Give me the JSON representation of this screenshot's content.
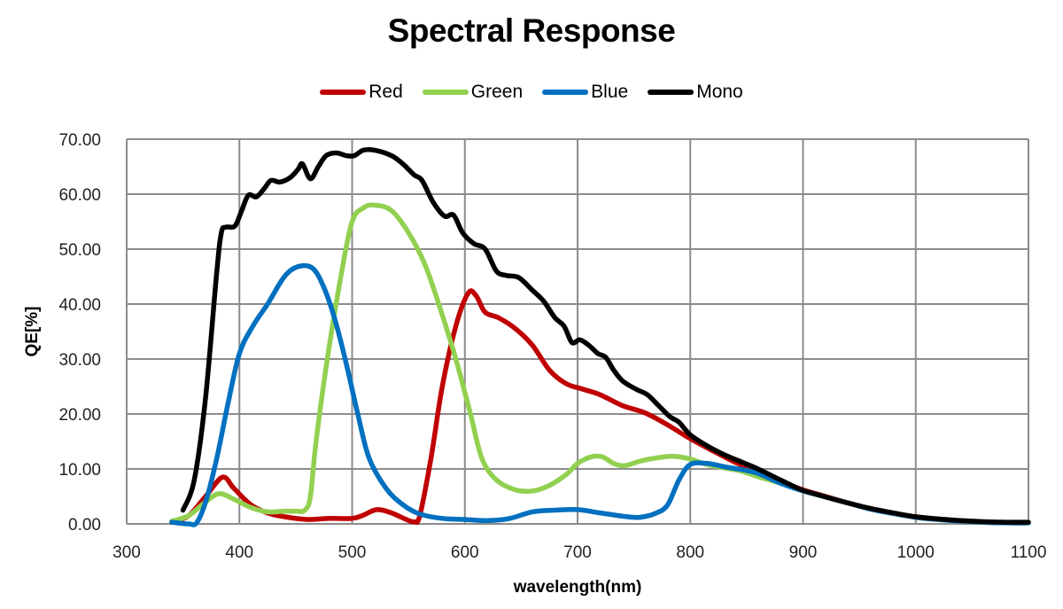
{
  "chart_data": {
    "type": "line",
    "title": "Spectral Response",
    "xlabel": "wavelength(nm)",
    "ylabel": "QE[%]",
    "xlim": [
      300,
      1100
    ],
    "ylim": [
      0,
      70
    ],
    "x_ticks": [
      300,
      400,
      500,
      600,
      700,
      800,
      900,
      1000,
      1100
    ],
    "x_tick_labels": [
      "300",
      "400",
      "500",
      "600",
      "700",
      "800",
      "900",
      "1000",
      "1100"
    ],
    "y_ticks": [
      0,
      10,
      20,
      30,
      40,
      50,
      60,
      70
    ],
    "y_tick_labels": [
      "0.00",
      "10.00",
      "20.00",
      "30.00",
      "40.00",
      "50.00",
      "60.00",
      "70.00"
    ],
    "grid": true,
    "legend_position": "top-center",
    "series": [
      {
        "name": "Red",
        "color": "#c00000",
        "points": [
          [
            340,
            0.3
          ],
          [
            355,
            1.5
          ],
          [
            370,
            5
          ],
          [
            385,
            8.5
          ],
          [
            395,
            6.5
          ],
          [
            410,
            3.5
          ],
          [
            425,
            2.0
          ],
          [
            440,
            1.3
          ],
          [
            460,
            0.8
          ],
          [
            480,
            1.0
          ],
          [
            500,
            1.0
          ],
          [
            510,
            1.6
          ],
          [
            522,
            2.6
          ],
          [
            535,
            2.0
          ],
          [
            548,
            0.8
          ],
          [
            555,
            0.4
          ],
          [
            560,
            1.5
          ],
          [
            570,
            12
          ],
          [
            580,
            25
          ],
          [
            592,
            36
          ],
          [
            603,
            42
          ],
          [
            610,
            41.5
          ],
          [
            618,
            38.5
          ],
          [
            630,
            37.5
          ],
          [
            645,
            35.5
          ],
          [
            660,
            32.5
          ],
          [
            675,
            28
          ],
          [
            690,
            25.5
          ],
          [
            705,
            24.5
          ],
          [
            720,
            23.5
          ],
          [
            740,
            21.5
          ],
          [
            760,
            20.2
          ],
          [
            780,
            18
          ],
          [
            800,
            15.5
          ],
          [
            820,
            13.3
          ],
          [
            840,
            11.2
          ],
          [
            860,
            9.6
          ],
          [
            880,
            7.8
          ],
          [
            900,
            6.2
          ],
          [
            920,
            5.0
          ],
          [
            940,
            3.8
          ],
          [
            960,
            2.7
          ],
          [
            980,
            1.9
          ],
          [
            1000,
            1.2
          ],
          [
            1020,
            0.8
          ],
          [
            1040,
            0.5
          ],
          [
            1060,
            0.3
          ],
          [
            1080,
            0.2
          ],
          [
            1100,
            0.2
          ]
        ]
      },
      {
        "name": "Green",
        "color": "#92d050",
        "points": [
          [
            340,
            0.5
          ],
          [
            355,
            1.5
          ],
          [
            370,
            4
          ],
          [
            382,
            5.5
          ],
          [
            395,
            4.5
          ],
          [
            410,
            3
          ],
          [
            425,
            2.2
          ],
          [
            440,
            2.3
          ],
          [
            450,
            2.3
          ],
          [
            458,
            2.5
          ],
          [
            463,
            5
          ],
          [
            468,
            15
          ],
          [
            478,
            30
          ],
          [
            490,
            45
          ],
          [
            500,
            55
          ],
          [
            510,
            57.5
          ],
          [
            520,
            58
          ],
          [
            535,
            57
          ],
          [
            550,
            53
          ],
          [
            565,
            47
          ],
          [
            580,
            38
          ],
          [
            592,
            30
          ],
          [
            605,
            20
          ],
          [
            615,
            12
          ],
          [
            628,
            8
          ],
          [
            645,
            6.2
          ],
          [
            660,
            6
          ],
          [
            675,
            7
          ],
          [
            690,
            9
          ],
          [
            700,
            11
          ],
          [
            712,
            12.2
          ],
          [
            722,
            12.2
          ],
          [
            732,
            11
          ],
          [
            742,
            10.6
          ],
          [
            755,
            11.4
          ],
          [
            770,
            12
          ],
          [
            785,
            12.3
          ],
          [
            800,
            11.8
          ],
          [
            815,
            10.8
          ],
          [
            830,
            10.2
          ],
          [
            845,
            9.6
          ],
          [
            860,
            8.6
          ],
          [
            880,
            7.4
          ],
          [
            900,
            6.0
          ],
          [
            920,
            4.9
          ],
          [
            940,
            3.8
          ],
          [
            960,
            2.7
          ],
          [
            980,
            1.9
          ],
          [
            1000,
            1.2
          ],
          [
            1020,
            0.8
          ],
          [
            1040,
            0.5
          ],
          [
            1060,
            0.3
          ],
          [
            1080,
            0.2
          ],
          [
            1100,
            0.2
          ]
        ]
      },
      {
        "name": "Blue",
        "color": "#0070c0",
        "points": [
          [
            340,
            0.3
          ],
          [
            355,
            0
          ],
          [
            362,
            0.2
          ],
          [
            370,
            4
          ],
          [
            380,
            12
          ],
          [
            390,
            22
          ],
          [
            400,
            31
          ],
          [
            412,
            36
          ],
          [
            425,
            40
          ],
          [
            440,
            45
          ],
          [
            452,
            46.8
          ],
          [
            465,
            46.5
          ],
          [
            475,
            43
          ],
          [
            485,
            37
          ],
          [
            495,
            29
          ],
          [
            505,
            20
          ],
          [
            515,
            12
          ],
          [
            530,
            6.5
          ],
          [
            545,
            3.5
          ],
          [
            560,
            1.8
          ],
          [
            580,
            1.0
          ],
          [
            600,
            0.8
          ],
          [
            620,
            0.6
          ],
          [
            640,
            1.0
          ],
          [
            660,
            2.2
          ],
          [
            680,
            2.5
          ],
          [
            700,
            2.6
          ],
          [
            720,
            2.0
          ],
          [
            740,
            1.4
          ],
          [
            755,
            1.2
          ],
          [
            770,
            2.0
          ],
          [
            780,
            3.5
          ],
          [
            790,
            8
          ],
          [
            800,
            10.8
          ],
          [
            815,
            11
          ],
          [
            830,
            10.4
          ],
          [
            845,
            9.9
          ],
          [
            860,
            9.2
          ],
          [
            880,
            7.4
          ],
          [
            900,
            6.0
          ],
          [
            920,
            4.9
          ],
          [
            940,
            3.8
          ],
          [
            960,
            2.7
          ],
          [
            980,
            1.9
          ],
          [
            1000,
            1.2
          ],
          [
            1020,
            0.8
          ],
          [
            1040,
            0.5
          ],
          [
            1060,
            0.3
          ],
          [
            1080,
            0.2
          ],
          [
            1100,
            0.2
          ]
        ]
      },
      {
        "name": "Mono",
        "color": "#000000",
        "points": [
          [
            350,
            2.5
          ],
          [
            360,
            8
          ],
          [
            370,
            23
          ],
          [
            380,
            46
          ],
          [
            384,
            53
          ],
          [
            388,
            54
          ],
          [
            396,
            54.2
          ],
          [
            402,
            57
          ],
          [
            408,
            59.8
          ],
          [
            415,
            59.5
          ],
          [
            422,
            61
          ],
          [
            428,
            62.5
          ],
          [
            436,
            62.2
          ],
          [
            445,
            63
          ],
          [
            452,
            64.5
          ],
          [
            456,
            65.5
          ],
          [
            463,
            62.8
          ],
          [
            470,
            65
          ],
          [
            477,
            67
          ],
          [
            486,
            67.5
          ],
          [
            495,
            67
          ],
          [
            502,
            67
          ],
          [
            510,
            68
          ],
          [
            520,
            68
          ],
          [
            535,
            67
          ],
          [
            545,
            65.5
          ],
          [
            555,
            63.5
          ],
          [
            562,
            62.5
          ],
          [
            572,
            58.5
          ],
          [
            582,
            56
          ],
          [
            590,
            56.2
          ],
          [
            598,
            53
          ],
          [
            608,
            51
          ],
          [
            618,
            50
          ],
          [
            628,
            46
          ],
          [
            637,
            45.2
          ],
          [
            648,
            44.8
          ],
          [
            660,
            42.5
          ],
          [
            670,
            40.5
          ],
          [
            680,
            37.5
          ],
          [
            688,
            36
          ],
          [
            695,
            33
          ],
          [
            702,
            33.5
          ],
          [
            710,
            32.5
          ],
          [
            718,
            31
          ],
          [
            725,
            30.3
          ],
          [
            732,
            28
          ],
          [
            740,
            26
          ],
          [
            752,
            24.5
          ],
          [
            762,
            23.5
          ],
          [
            772,
            21.5
          ],
          [
            782,
            19.5
          ],
          [
            790,
            18.5
          ],
          [
            800,
            16.2
          ],
          [
            815,
            14.2
          ],
          [
            830,
            12.6
          ],
          [
            845,
            11.3
          ],
          [
            860,
            10
          ],
          [
            875,
            8.5
          ],
          [
            890,
            7.0
          ],
          [
            900,
            6.1
          ],
          [
            920,
            4.9
          ],
          [
            940,
            3.8
          ],
          [
            960,
            2.8
          ],
          [
            980,
            2.0
          ],
          [
            1000,
            1.3
          ],
          [
            1020,
            0.9
          ],
          [
            1040,
            0.6
          ],
          [
            1060,
            0.4
          ],
          [
            1080,
            0.3
          ],
          [
            1100,
            0.3
          ]
        ]
      }
    ]
  }
}
